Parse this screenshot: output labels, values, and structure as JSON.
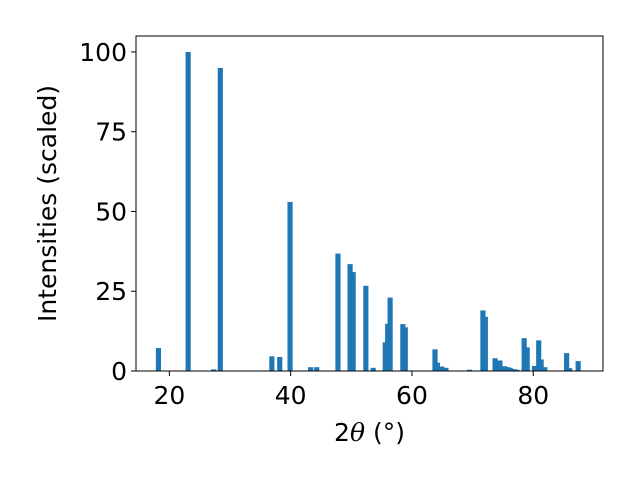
{
  "chart_data": {
    "type": "bar",
    "title": "",
    "xlabel": {
      "prefix": "2",
      "symbol": "θ",
      "suffix": " (°)"
    },
    "ylabel": "Intensities (scaled)",
    "xlim": [
      14.5,
      91.5
    ],
    "ylim": [
      0,
      105
    ],
    "bar_width": 1.0,
    "color": "#1f77b4",
    "grid": false,
    "legend": "none",
    "x_ticks": [
      20,
      40,
      60,
      80
    ],
    "y_ticks": [
      0,
      25,
      50,
      75,
      100
    ],
    "x": [
      18.2,
      23.1,
      27.3,
      28.4,
      36.9,
      38.2,
      39.9,
      43.3,
      44.3,
      47.8,
      49.8,
      50.3,
      52.4,
      53.6,
      55.6,
      56.0,
      56.4,
      58.5,
      58.9,
      63.8,
      64.2,
      64.9,
      65.6,
      69.5,
      71.7,
      72.1,
      73.7,
      74.5,
      75.3,
      75.8,
      76.2,
      76.8,
      77.3,
      78.5,
      79.0,
      80.2,
      80.9,
      81.3,
      81.9,
      85.5,
      86.0,
      87.4
    ],
    "values": [
      7.2,
      100,
      0.5,
      95,
      4.6,
      4.4,
      53,
      1.2,
      1.2,
      36.8,
      33.5,
      31,
      26.7,
      1,
      9,
      14.8,
      23,
      14.7,
      13.7,
      6.8,
      2.6,
      1.4,
      1,
      0.4,
      19,
      17,
      4,
      3.3,
      1.5,
      1.2,
      1,
      0.6,
      0.4,
      10.3,
      7.4,
      1.6,
      9.6,
      3.6,
      1.2,
      5.6,
      0.9,
      3.1
    ]
  }
}
